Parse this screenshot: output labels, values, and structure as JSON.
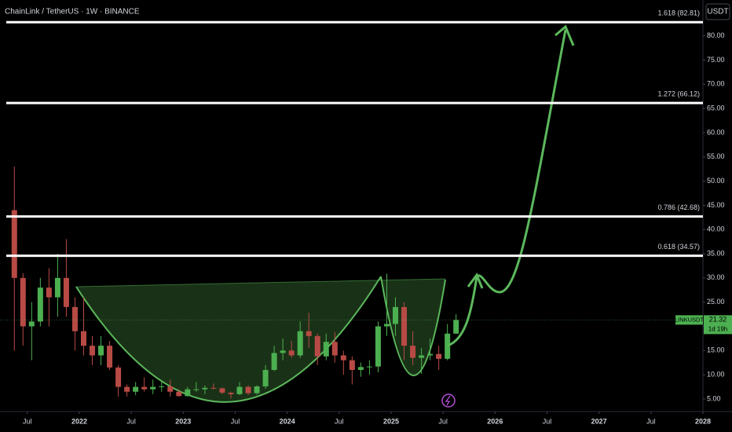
{
  "chart_data": {
    "type": "candlestick",
    "title": "ChainLink / TetherUS · 1W · BINANCE",
    "currency": "USDT",
    "x": [
      "2021-05",
      "2021-06",
      "2021-07",
      "2021-08",
      "2021-09",
      "2021-10",
      "2021-11",
      "2021-12",
      "2022-01",
      "2022-02",
      "2022-03",
      "2022-04",
      "2022-05",
      "2022-06",
      "2022-07",
      "2022-08",
      "2022-09",
      "2022-10",
      "2022-11",
      "2022-12",
      "2023-01",
      "2023-02",
      "2023-03",
      "2023-04",
      "2023-05",
      "2023-06",
      "2023-07",
      "2023-08",
      "2023-09",
      "2023-10",
      "2023-11",
      "2023-12",
      "2024-01",
      "2024-02",
      "2024-03",
      "2024-04",
      "2024-05",
      "2024-06",
      "2024-07",
      "2024-08",
      "2024-09",
      "2024-10",
      "2024-11",
      "2024-12",
      "2025-01",
      "2025-02",
      "2025-03",
      "2025-04",
      "2025-05",
      "2025-06",
      "2025-07",
      "2025-08"
    ],
    "open": [
      44,
      30,
      20,
      21,
      28,
      26,
      30,
      24,
      19,
      16,
      14,
      16,
      11.5,
      7.5,
      6.5,
      7.5,
      7,
      7.5,
      7.6,
      6.5,
      5.6,
      7,
      7,
      7.3,
      7.2,
      6.3,
      6,
      7.5,
      6.2,
      7.6,
      11,
      14.5,
      15,
      14,
      19,
      18,
      13.8,
      16.8,
      14,
      13,
      11,
      11.6,
      11.7,
      20,
      20.5,
      24,
      16,
      13.5,
      14,
      14.3,
      13.3,
      18.5
    ],
    "high": [
      53,
      31,
      25,
      30,
      32,
      35,
      38,
      26,
      26,
      18,
      18,
      17,
      12,
      8,
      8.5,
      9.5,
      9,
      8.5,
      9,
      7,
      7.5,
      8.5,
      7.8,
      8.2,
      7.4,
      6.5,
      8.5,
      7.8,
      7.8,
      12,
      16,
      17.5,
      17,
      21,
      22.8,
      18.5,
      18.5,
      18.8,
      15,
      13.8,
      12.5,
      13,
      21,
      30.9,
      26,
      25,
      19,
      15.5,
      17.5,
      16,
      20.5,
      22.5
    ],
    "low": [
      15,
      16,
      13,
      20,
      20,
      22,
      22,
      15,
      14,
      12,
      12,
      11,
      5.5,
      5.5,
      5.8,
      6.5,
      6,
      6.5,
      5.5,
      5.5,
      5.5,
      6.5,
      6,
      7,
      6,
      5.1,
      5.8,
      5.8,
      5.9,
      7.1,
      10.8,
      13,
      13.5,
      13.5,
      15.5,
      12,
      13,
      12.5,
      10,
      8,
      9.6,
      10,
      10.5,
      18,
      18,
      13,
      12,
      10.2,
      13,
      11,
      13,
      18.5
    ],
    "close": [
      30,
      20,
      21,
      28,
      26,
      30,
      24,
      19,
      16,
      14,
      16,
      11.5,
      7.5,
      6.5,
      7.5,
      7,
      7.5,
      7.6,
      6.5,
      5.6,
      7,
      7,
      7.3,
      7.2,
      6.3,
      6,
      7.5,
      6.2,
      7.6,
      11,
      14.5,
      15,
      14,
      19,
      18,
      13.8,
      16.8,
      14,
      13,
      11,
      11.6,
      11.7,
      20,
      20.5,
      24,
      16,
      13.5,
      14,
      14.3,
      13.3,
      18.5,
      21.32
    ],
    "up_color": "#4caf50",
    "down_color": "#b84a45",
    "xlim": [
      2021.237,
      2028.0
    ],
    "xticks": [
      {
        "value": 2021.5,
        "label": "Jul"
      },
      2022,
      {
        "value": 2022.5,
        "label": "Jul"
      },
      2023,
      {
        "value": 2023.5,
        "label": "Jul"
      },
      2024,
      {
        "value": 2024.5,
        "label": "Jul"
      },
      2025,
      {
        "value": 2025.5,
        "label": "Jul"
      },
      2026,
      {
        "value": 2026.5,
        "label": "Jul"
      },
      2027,
      {
        "value": 2027.5,
        "label": "Jul"
      },
      2028
    ],
    "ylim": [
      2.4,
      87.4
    ],
    "yticks": [
      {
        "value": 5,
        "label": "5.00"
      },
      {
        "value": 10,
        "label": "10.00"
      },
      {
        "value": 15,
        "label": "15.00"
      },
      {
        "value": 20,
        "label": "20.00"
      },
      {
        "value": 25,
        "label": "25.00"
      },
      {
        "value": 30,
        "label": "30.00"
      },
      {
        "value": 35,
        "label": "35.00"
      },
      {
        "value": 40,
        "label": "40.00"
      },
      {
        "value": 45,
        "label": "45.00"
      },
      {
        "value": 50,
        "label": "50.00"
      },
      {
        "value": 55,
        "label": "55.00"
      },
      {
        "value": 60,
        "label": "60.00"
      },
      {
        "value": 65,
        "label": "65.00"
      },
      {
        "value": 70,
        "label": "70.00"
      },
      {
        "value": 75,
        "label": "75.00"
      },
      {
        "value": 80,
        "label": "80.00"
      }
    ],
    "levels": {
      "values": [
        82.81,
        66.12,
        42.68,
        34.57
      ],
      "value_labels": [
        "1.618 (82.81)",
        "1.272 (66.12)",
        "0.786 (42.68)",
        "0.618 (34.57)"
      ]
    },
    "last_price": {
      "symbol": "LINKUSDT",
      "value": 21.32,
      "countdown": "1d 19h"
    }
  }
}
